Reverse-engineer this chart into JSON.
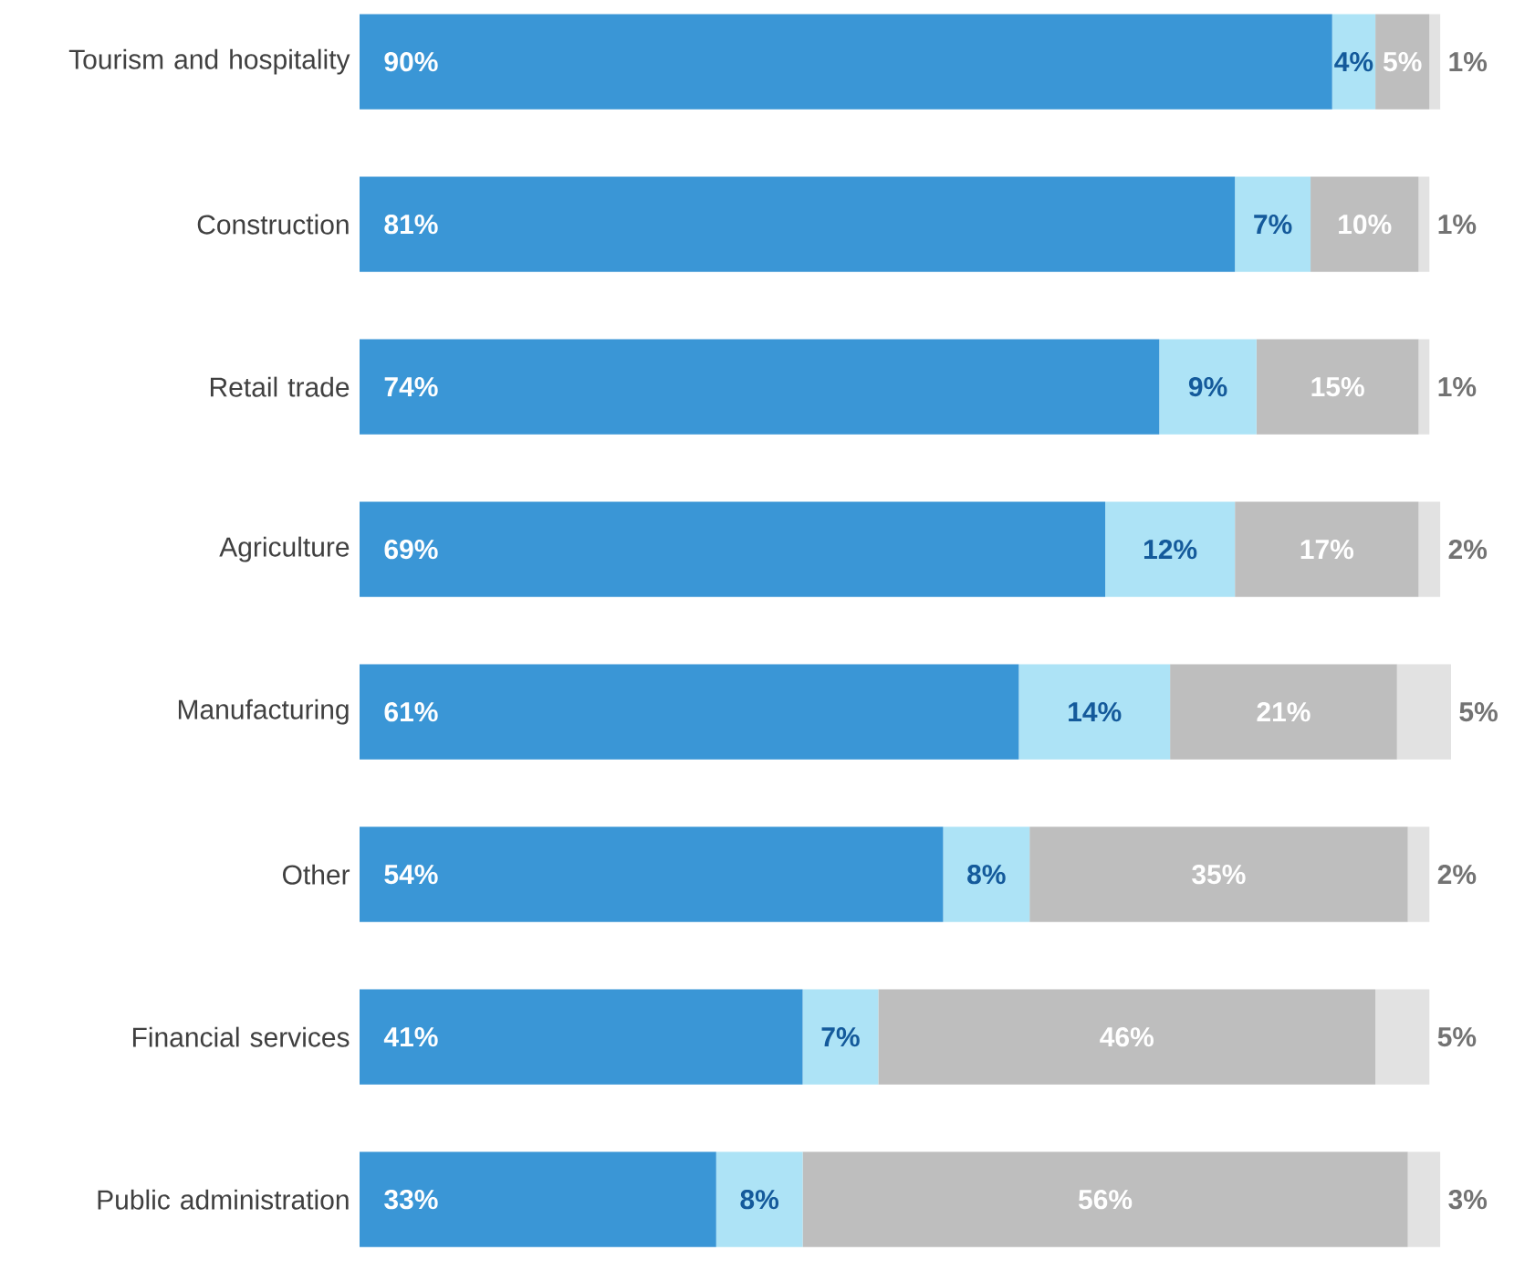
{
  "chart_data": {
    "type": "bar",
    "orientation": "horizontal",
    "stacked": true,
    "xlim": [
      0,
      101
    ],
    "tick_labels": "y",
    "categories": [
      "Tourism and hospitality",
      "Construction",
      "Retail trade",
      "Agriculture",
      "Manufacturing",
      "Other",
      "Financial services",
      "Public administration"
    ],
    "series": [
      {
        "color": "#3a96d6",
        "values": [
          90,
          81,
          74,
          69,
          61,
          54,
          41,
          33
        ],
        "value_labels": [
          "90%",
          "81%",
          "74%",
          "69%",
          "61%",
          "54%",
          "41%",
          "33%"
        ]
      },
      {
        "color": "#ade3f6",
        "values": [
          4,
          7,
          9,
          12,
          14,
          8,
          7,
          8
        ],
        "value_labels": [
          "4%",
          "7%",
          "9%",
          "12%",
          "14%",
          "8%",
          "7%",
          "8%"
        ]
      },
      {
        "color": "#bebebe",
        "values": [
          5,
          10,
          15,
          17,
          21,
          35,
          46,
          56
        ],
        "value_labels": [
          "5%",
          "10%",
          "15%",
          "17%",
          "21%",
          "35%",
          "46%",
          "56%"
        ]
      },
      {
        "color": "#e2e2e2",
        "values": [
          1,
          1,
          1,
          2,
          5,
          2,
          5,
          3
        ],
        "value_labels": [
          "1%",
          "1%",
          "1%",
          "2%",
          "5%",
          "2%",
          "5%",
          "3%"
        ]
      }
    ]
  }
}
